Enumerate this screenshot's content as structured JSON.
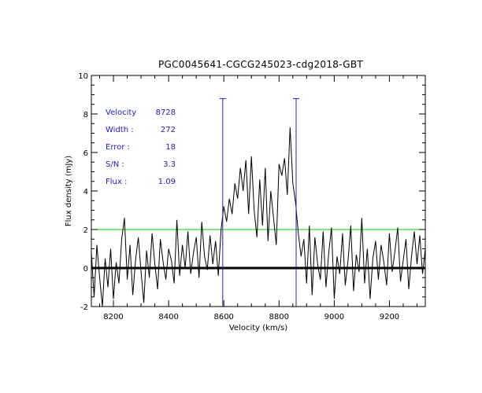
{
  "chart_data": {
    "type": "line",
    "title": "PGC0045641-CGCG245023-cdg2018-GBT",
    "xlabel": "Velocity (km/s)",
    "ylabel": "Flux density (mJy)",
    "xlim": [
      8120,
      9330
    ],
    "ylim": [
      -2,
      10
    ],
    "xticks": [
      8200,
      8400,
      8600,
      8800,
      9000,
      9200
    ],
    "xtick_labels": [
      "8200",
      "8400",
      "8600",
      "8800",
      "9000",
      "9200"
    ],
    "yticks": [
      -2,
      0,
      2,
      4,
      6,
      8,
      10
    ],
    "ytick_labels": [
      "-2",
      "0",
      "2",
      "4",
      "6",
      "8",
      "10"
    ],
    "zero_line": 0,
    "threshold_line": {
      "y": 2,
      "color": "#00cc00"
    },
    "markers": [
      {
        "x": 8596,
        "color": "#2020c0"
      },
      {
        "x": 8862,
        "color": "#2020c0"
      }
    ],
    "annotations": [
      {
        "label": "Velocity",
        "value": "8728"
      },
      {
        "label": "Width :",
        "value": "272"
      },
      {
        "label": "Error :",
        "value": "18"
      },
      {
        "label": "S/N :",
        "value": "3.3"
      },
      {
        "label": "Flux :",
        "value": "1.09"
      }
    ],
    "series": [
      {
        "name": "spectrum",
        "color": "#000000",
        "x": [
          8120,
          8130,
          8140,
          8150,
          8160,
          8170,
          8180,
          8190,
          8200,
          8210,
          8220,
          8230,
          8240,
          8250,
          8260,
          8270,
          8280,
          8290,
          8300,
          8310,
          8320,
          8330,
          8340,
          8350,
          8360,
          8370,
          8380,
          8390,
          8400,
          8410,
          8420,
          8430,
          8440,
          8450,
          8460,
          8470,
          8480,
          8490,
          8500,
          8510,
          8520,
          8530,
          8540,
          8550,
          8560,
          8570,
          8580,
          8590,
          8600,
          8610,
          8620,
          8630,
          8640,
          8650,
          8660,
          8670,
          8680,
          8690,
          8700,
          8710,
          8720,
          8730,
          8740,
          8750,
          8760,
          8770,
          8780,
          8790,
          8800,
          8810,
          8820,
          8830,
          8840,
          8850,
          8860,
          8870,
          8880,
          8890,
          8900,
          8910,
          8920,
          8930,
          8940,
          8950,
          8960,
          8970,
          8980,
          8990,
          9000,
          9010,
          9020,
          9030,
          9040,
          9050,
          9060,
          9070,
          9080,
          9090,
          9100,
          9110,
          9120,
          9130,
          9140,
          9150,
          9160,
          9170,
          9180,
          9190,
          9200,
          9210,
          9220,
          9230,
          9240,
          9250,
          9260,
          9270,
          9280,
          9290,
          9300,
          9310,
          9320,
          9330
        ],
        "values": [
          0.8,
          -1.5,
          1.2,
          -0.5,
          -2.0,
          0.5,
          -1.0,
          1.0,
          -1.6,
          0.3,
          -0.8,
          1.5,
          2.6,
          -0.6,
          1.2,
          -1.4,
          0.4,
          1.6,
          -0.2,
          -1.8,
          0.9,
          -0.5,
          1.8,
          0.2,
          -1.1,
          1.5,
          0.3,
          -0.6,
          1.0,
          0.4,
          -0.8,
          2.5,
          -0.4,
          1.2,
          0.0,
          1.9,
          -0.3,
          0.8,
          1.6,
          -0.5,
          2.4,
          0.6,
          -0.1,
          1.7,
          0.2,
          1.4,
          -0.4,
          2.0,
          3.2,
          2.4,
          3.6,
          2.8,
          4.4,
          3.6,
          5.2,
          4.0,
          5.6,
          2.8,
          5.8,
          3.0,
          1.6,
          4.6,
          2.2,
          5.2,
          1.4,
          4.0,
          2.6,
          1.2,
          5.4,
          4.8,
          5.7,
          3.8,
          7.3,
          4.4,
          3.4,
          1.8,
          0.6,
          1.5,
          -0.8,
          2.2,
          -1.4,
          1.6,
          0.2,
          -0.6,
          1.9,
          -1.0,
          0.8,
          2.1,
          -1.6,
          0.6,
          -0.3,
          1.8,
          -0.9,
          0.4,
          2.2,
          -1.2,
          0.7,
          -0.2,
          2.6,
          -0.8,
          1.0,
          -1.6,
          0.5,
          1.4,
          -0.6,
          1.2,
          0.3,
          -0.9,
          1.8,
          -0.2,
          0.9,
          2.1,
          -0.7,
          0.4,
          1.5,
          -1.1,
          0.6,
          1.9,
          0.2,
          1.7,
          -0.3,
          1.0
        ]
      }
    ]
  }
}
